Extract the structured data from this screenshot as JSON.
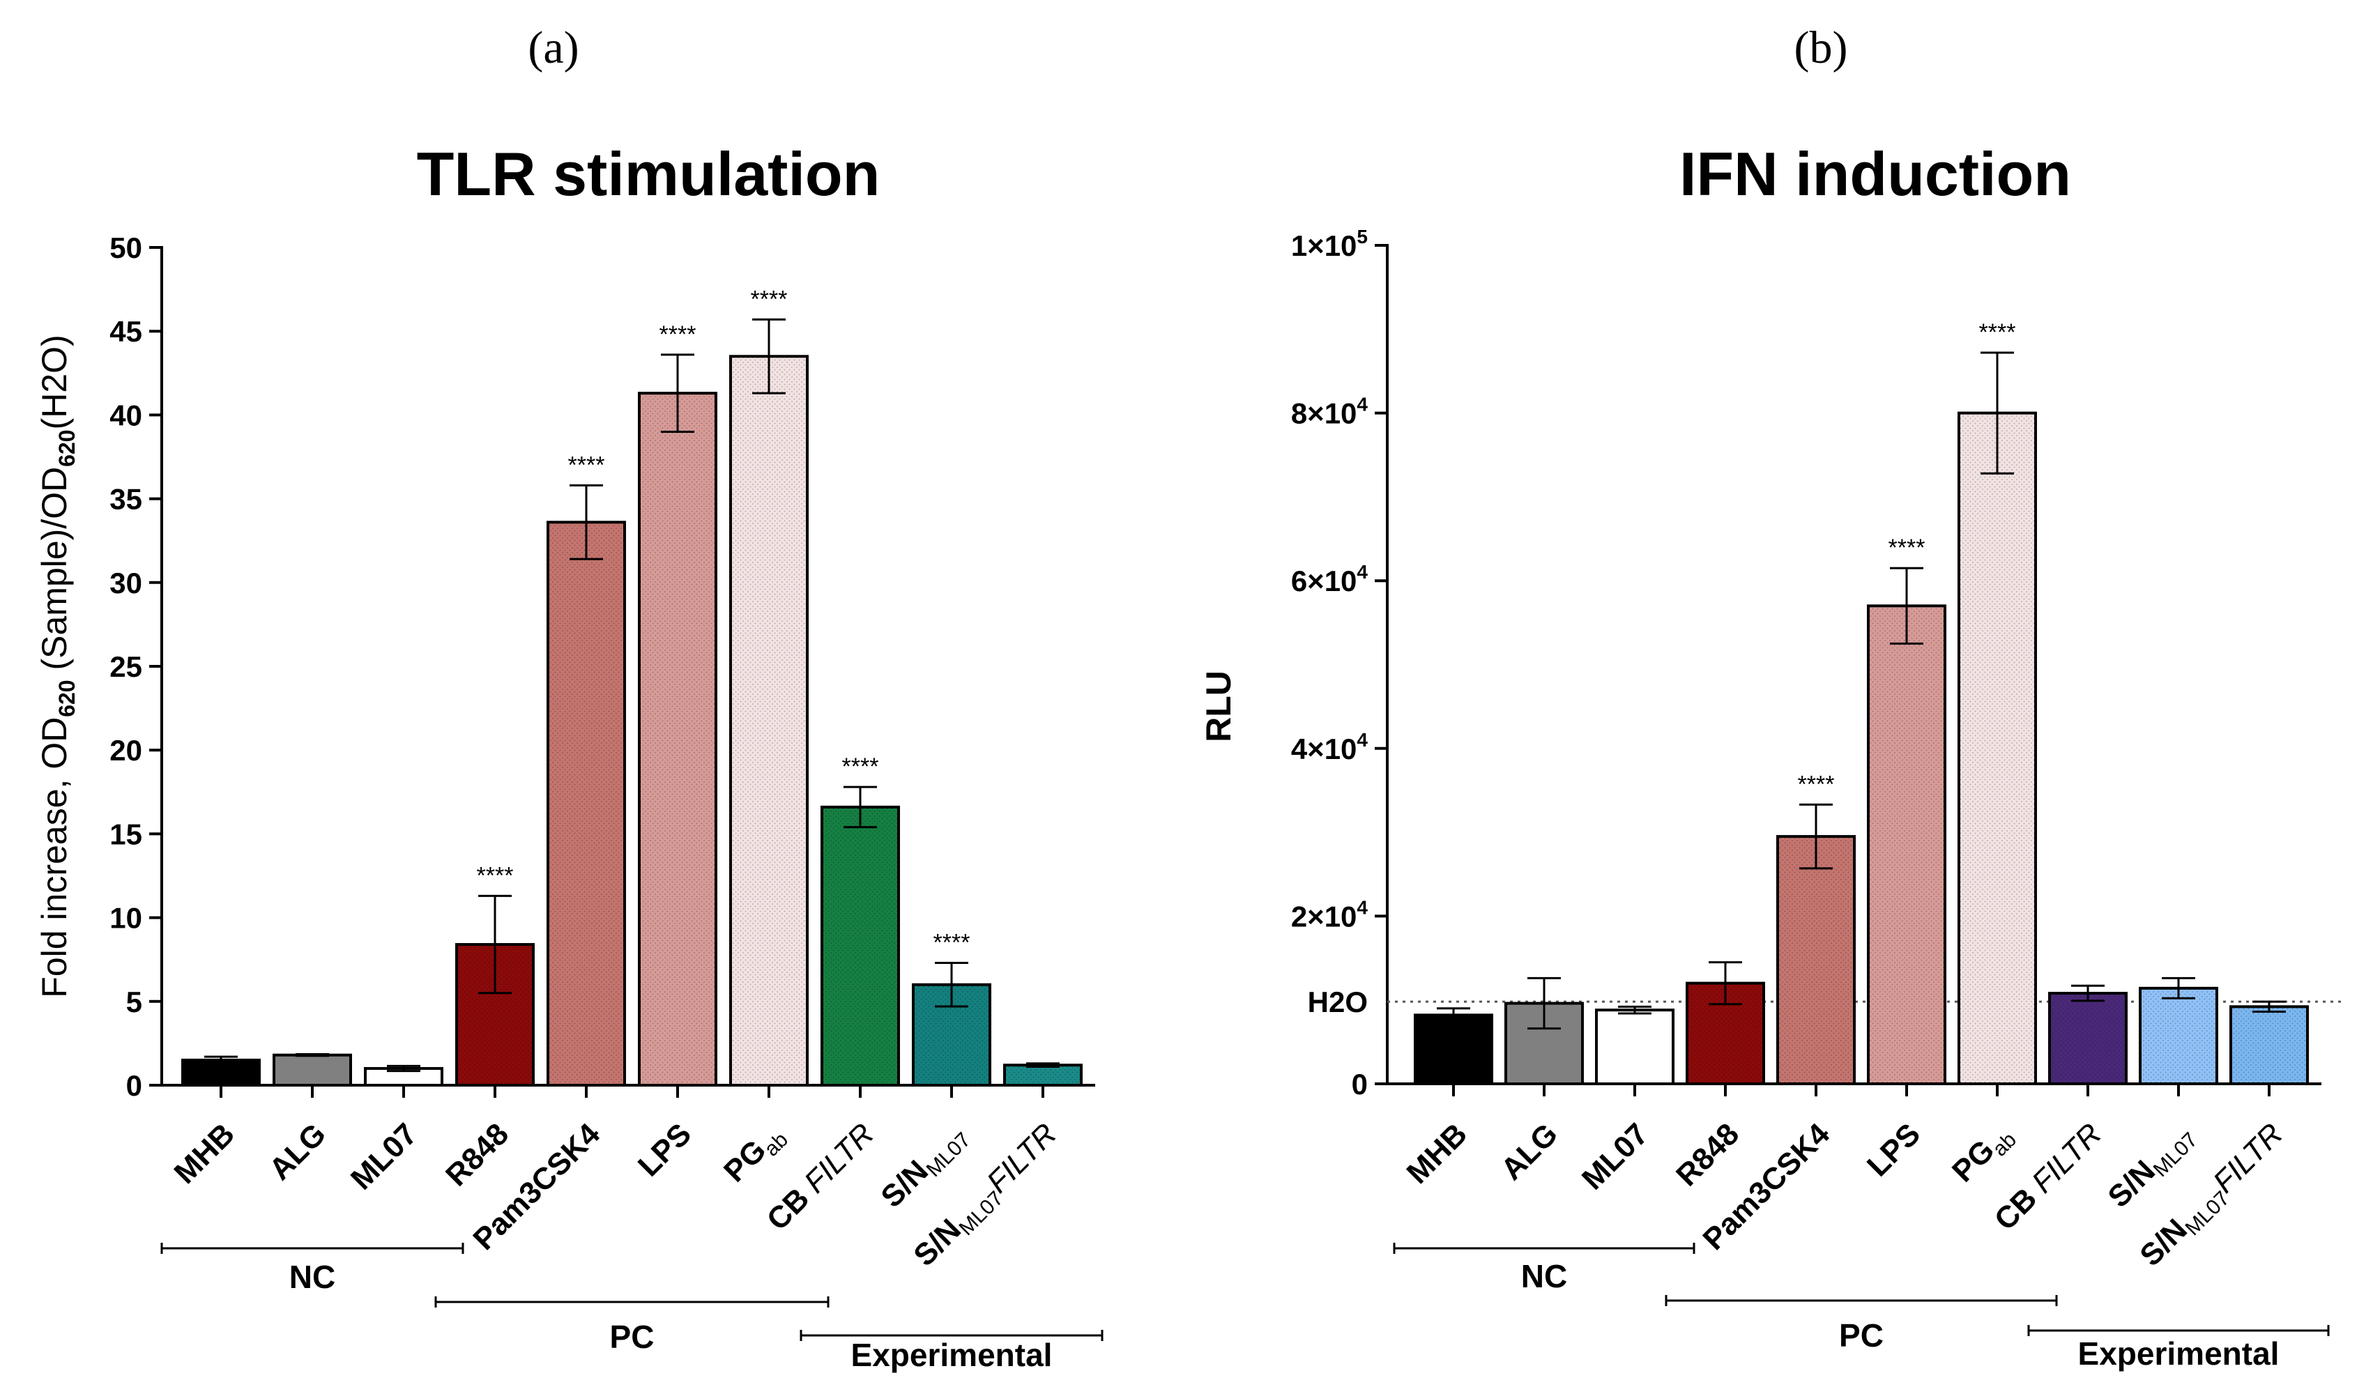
{
  "panels": {
    "a": "(a)",
    "b": "(b)"
  },
  "chart_data": [
    {
      "type": "bar",
      "title": "TLR stimulation",
      "ylabel_parts": [
        "Fold increase, OD",
        "620",
        " (Sample)/OD",
        "620",
        "(H2O)"
      ],
      "ylim": [
        0,
        50
      ],
      "yticks": [
        0,
        5,
        10,
        15,
        20,
        25,
        30,
        35,
        40,
        45,
        50
      ],
      "categories": [
        {
          "label": "MHB",
          "sub": "",
          "ital": ""
        },
        {
          "label": "ALG",
          "sub": "",
          "ital": ""
        },
        {
          "label": "ML07",
          "sub": "",
          "ital": ""
        },
        {
          "label": "R848",
          "sub": "",
          "ital": ""
        },
        {
          "label": "Pam3CSK4",
          "sub": "",
          "ital": ""
        },
        {
          "label": "LPS",
          "sub": "",
          "ital": ""
        },
        {
          "label": "PG",
          "sub": "ab",
          "ital": ""
        },
        {
          "label": "CB ",
          "sub": "",
          "ital": "FILTR"
        },
        {
          "label": "S/N",
          "sub": "ML07",
          "ital": ""
        },
        {
          "label": "S/N",
          "sub": "ML07",
          "ital": "FILTR"
        }
      ],
      "values": [
        1.5,
        1.8,
        1.0,
        8.4,
        33.6,
        41.3,
        43.5,
        16.6,
        6.0,
        1.2
      ],
      "errors": [
        0.2,
        0.05,
        0.15,
        2.9,
        2.2,
        2.3,
        2.2,
        1.2,
        1.3,
        0.1
      ],
      "colors": [
        "#000000",
        "#808080",
        "#ffffff",
        "#8b0a0a",
        "#c4746e",
        "#d69a97",
        "#f2e2e2",
        "#157f42",
        "#14807e",
        "#1a8a88"
      ],
      "significance": [
        "",
        "",
        "",
        "****",
        "****",
        "****",
        "****",
        "****",
        "****",
        ""
      ],
      "groups": [
        {
          "label": "NC",
          "from": 0,
          "to": 2
        },
        {
          "label": "PC",
          "from": 3,
          "to": 6
        },
        {
          "label": "Experimental",
          "from": 7,
          "to": 9
        }
      ]
    },
    {
      "type": "bar",
      "title": "IFN induction",
      "ylabel": "RLU",
      "ylim": [
        0,
        100000
      ],
      "yticks": [
        {
          "value": 0,
          "base": "0",
          "exp": ""
        },
        {
          "value": 20000,
          "base": "2×10",
          "exp": "4"
        },
        {
          "value": 40000,
          "base": "4×10",
          "exp": "4"
        },
        {
          "value": 60000,
          "base": "6×10",
          "exp": "4"
        },
        {
          "value": 80000,
          "base": "8×10",
          "exp": "4"
        },
        {
          "value": 100000,
          "base": "1×10",
          "exp": "5"
        }
      ],
      "reference_line": {
        "label": "H2O",
        "value": 9800
      },
      "categories": [
        {
          "label": "MHB",
          "sub": "",
          "ital": ""
        },
        {
          "label": "ALG",
          "sub": "",
          "ital": ""
        },
        {
          "label": "ML07",
          "sub": "",
          "ital": ""
        },
        {
          "label": "R848",
          "sub": "",
          "ital": ""
        },
        {
          "label": "Pam3CSK4",
          "sub": "",
          "ital": ""
        },
        {
          "label": "LPS",
          "sub": "",
          "ital": ""
        },
        {
          "label": "PG",
          "sub": "ab",
          "ital": ""
        },
        {
          "label": "CB ",
          "sub": "",
          "ital": "FILTR"
        },
        {
          "label": "S/N",
          "sub": "ML07",
          "ital": ""
        },
        {
          "label": "S/N",
          "sub": "ML07",
          "ital": "FILTR"
        }
      ],
      "values": [
        8200,
        9600,
        8800,
        12000,
        29500,
        57000,
        80000,
        10800,
        11400,
        9200
      ],
      "errors": [
        800,
        3000,
        400,
        2500,
        3800,
        4500,
        7200,
        900,
        1200,
        600
      ],
      "colors": [
        "#000000",
        "#808080",
        "#ffffff",
        "#8b0a0a",
        "#c4746e",
        "#d69a97",
        "#f2e2e2",
        "#4a2878",
        "#8fc1f7",
        "#7ab6f0"
      ],
      "significance": [
        "",
        "",
        "",
        "",
        "****",
        "****",
        "****",
        "",
        "",
        ""
      ],
      "groups": [
        {
          "label": "NC",
          "from": 0,
          "to": 2
        },
        {
          "label": "PC",
          "from": 3,
          "to": 6
        },
        {
          "label": "Experimental",
          "from": 7,
          "to": 9
        }
      ]
    }
  ]
}
